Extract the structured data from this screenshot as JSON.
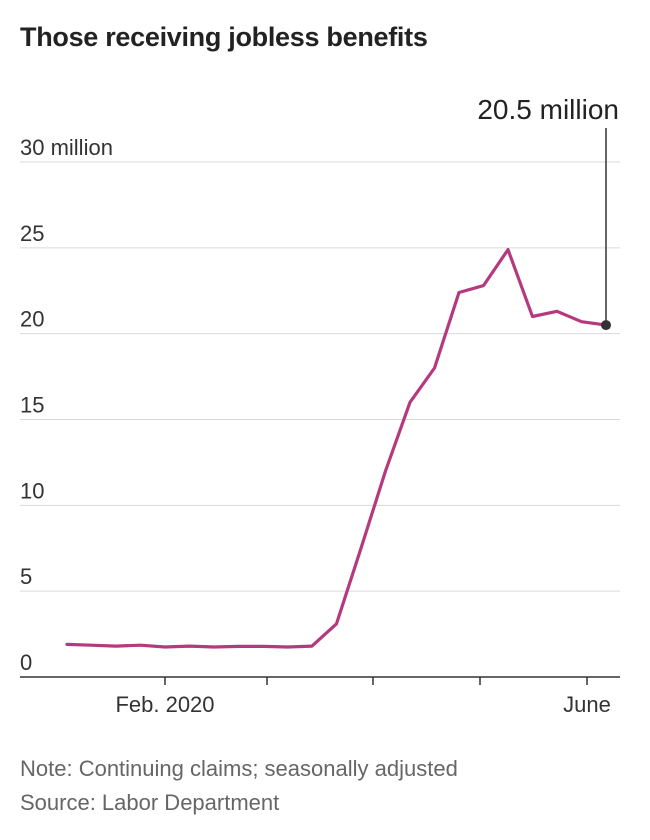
{
  "title": "Those receiving jobless benefits",
  "note": "Note: Continuing claims; seasonally adjusted",
  "source": "Source: Labor Department",
  "chart_data": {
    "type": "line",
    "title": "Those receiving jobless benefits",
    "y_unit_label": "30 million",
    "y_ticks": [
      0,
      5,
      10,
      15,
      20,
      25,
      30
    ],
    "y_tick_labels": [
      "0",
      "5",
      "10",
      "15",
      "20",
      "25",
      "30 million"
    ],
    "ylim": [
      0,
      30
    ],
    "x_tick_labels": [
      "Feb. 2020",
      "June"
    ],
    "grid": true,
    "line_color": "#b5397f",
    "series": [
      {
        "values": [
          1.9,
          1.85,
          1.8,
          1.85,
          1.75,
          1.8,
          1.75,
          1.78,
          1.78,
          1.75,
          1.8,
          3.1,
          7.5,
          12.0,
          16.0,
          18.0,
          22.4,
          22.8,
          24.9,
          21.0,
          21.3,
          20.7,
          20.5
        ]
      }
    ],
    "annotation": {
      "label": "20.5 million",
      "value": 20.5
    }
  }
}
